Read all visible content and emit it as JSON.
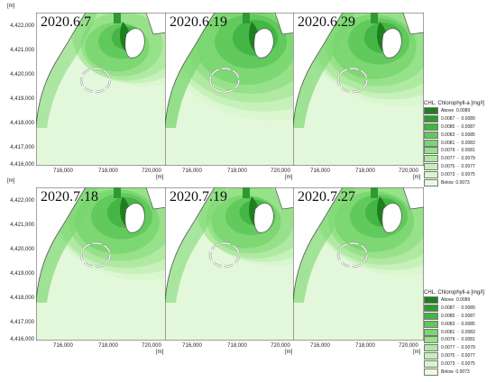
{
  "axis": {
    "y_unit": "[m]",
    "x_unit": "[m]",
    "y_ticks": [
      "4,422,000",
      "4,421,000",
      "4,420,000",
      "4,419,000",
      "4,418,000",
      "4,417,000",
      "4,416,000"
    ],
    "x_ticks": [
      "716,000",
      "718,000",
      "720,000"
    ]
  },
  "panels": [
    {
      "date": "2020.6.7",
      "plume_level": 0.3
    },
    {
      "date": "2020.6.19",
      "plume_level": 0.65
    },
    {
      "date": "2020.6.29",
      "plume_level": 0.5
    },
    {
      "date": "2020.7.18",
      "plume_level": 0.5
    },
    {
      "date": "2020.7.19",
      "plume_level": 0.35
    },
    {
      "date": "2020.7.27",
      "plume_level": 0.45
    }
  ],
  "legend": {
    "title": "CHL. Chlorophyll-a [mg/l]",
    "items": [
      {
        "label": "Above  0.0089",
        "color": "#1e7f1e"
      },
      {
        "label": "0.0087  -  0.0089",
        "color": "#2f9a2f"
      },
      {
        "label": "0.0085  -  0.0087",
        "color": "#43b443"
      },
      {
        "label": "0.0083  -  0.0085",
        "color": "#5fc85a"
      },
      {
        "label": "0.0081  -  0.0083",
        "color": "#7ad670"
      },
      {
        "label": "0.0079  -  0.0081",
        "color": "#95e088"
      },
      {
        "label": "0.0077  -  0.0079",
        "color": "#ade9a0"
      },
      {
        "label": "0.0075  -  0.0077",
        "color": "#c4f0b8"
      },
      {
        "label": "0.0073  -  0.0075",
        "color": "#d8f6ce"
      },
      {
        "label": "Below  0.0073",
        "color": "#eafbe3"
      }
    ]
  },
  "colors": {
    "water_base": "#e3f8da",
    "coast_outline": "#555555",
    "breakwater": "#9a9a9a"
  }
}
